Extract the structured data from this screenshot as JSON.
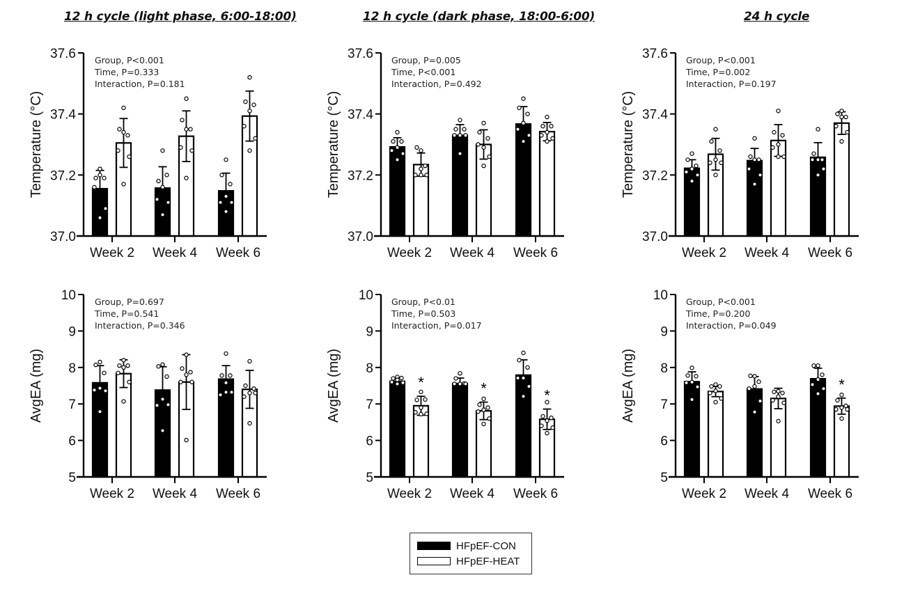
{
  "panel_titles": [
    "12 h cycle (light phase, 6:00-18:00)",
    "12 h cycle (dark phase, 18:00-6:00)",
    "24 h cycle"
  ],
  "legend": {
    "items": [
      {
        "label": "HFpEF-CON",
        "fill": "#000000"
      },
      {
        "label": "HFpEF-HEAT",
        "fill": "#ffffff"
      }
    ]
  },
  "chart_data": [
    {
      "type": "bar",
      "title": "12 h cycle (light phase, 6:00-18:00)",
      "ylabel": "Temperature  (°C)",
      "xlabel": "",
      "categories": [
        "Week 2",
        "Week 4",
        "Week 6"
      ],
      "ylim": [
        37.0,
        37.6
      ],
      "yticks": [
        37.0,
        37.2,
        37.4,
        37.6
      ],
      "ytick_labels": [
        "37.0",
        "37.2",
        "37.4",
        "37.6"
      ],
      "stats": [
        "Group, P<0.001",
        "Time, P=0.333",
        "Interaction, P=0.181"
      ],
      "series": [
        {
          "name": "HFpEF-CON",
          "values": [
            37.155,
            37.157,
            37.148
          ],
          "sd": [
            0.06,
            0.07,
            0.058
          ],
          "points": [
            [
              37.22,
              37.19,
              37.19,
              37.2,
              37.16,
              37.09,
              37.06
            ],
            [
              37.28,
              37.18,
              37.2,
              37.16,
              37.12,
              37.11,
              37.07
            ],
            [
              37.25,
              37.2,
              37.17,
              37.13,
              37.11,
              37.11,
              37.08
            ]
          ]
        },
        {
          "name": "HFpEF-HEAT",
          "values": [
            37.305,
            37.327,
            37.393
          ],
          "sd": [
            0.08,
            0.083,
            0.082
          ],
          "points": [
            [
              37.42,
              37.35,
              37.33,
              37.34,
              37.28,
              37.26,
              37.17
            ],
            [
              37.45,
              37.38,
              37.35,
              37.35,
              37.29,
              37.28,
              37.19
            ],
            [
              37.52,
              37.44,
              37.43,
              37.41,
              37.36,
              37.32,
              37.28
            ]
          ]
        }
      ],
      "significance": [
        "",
        "",
        ""
      ]
    },
    {
      "type": "bar",
      "title": "12 h cycle (dark phase, 18:00-6:00)",
      "ylabel": "Temperature  (°C)",
      "xlabel": "",
      "categories": [
        "Week 2",
        "Week 4",
        "Week 6"
      ],
      "ylim": [
        37.0,
        37.6
      ],
      "yticks": [
        37.0,
        37.2,
        37.4,
        37.6
      ],
      "ytick_labels": [
        "37.0",
        "37.2",
        "37.4",
        "37.6"
      ],
      "stats": [
        "Group, P=0.005",
        "Time, P<0.001",
        "Interaction, P=0.492"
      ],
      "series": [
        {
          "name": "HFpEF-CON",
          "values": [
            37.292,
            37.33,
            37.367
          ],
          "sd": [
            0.03,
            0.035,
            0.057
          ],
          "points": [
            [
              37.34,
              37.31,
              37.31,
              37.29,
              37.28,
              37.27,
              37.25
            ],
            [
              37.38,
              37.35,
              37.35,
              37.33,
              37.33,
              37.33,
              37.27
            ],
            [
              37.45,
              37.42,
              37.4,
              37.37,
              37.35,
              37.33,
              37.31
            ]
          ]
        },
        {
          "name": "HFpEF-HEAT",
          "values": [
            37.234,
            37.3,
            37.342
          ],
          "sd": [
            0.038,
            0.048,
            0.03
          ],
          "points": [
            [
              37.28,
              37.29,
              37.23,
              37.22,
              37.2,
              37.2,
              37.2
            ],
            [
              37.37,
              37.34,
              37.32,
              37.29,
              37.3,
              37.26,
              37.23
            ],
            [
              37.39,
              37.36,
              37.36,
              37.34,
              37.33,
              37.32,
              37.31
            ]
          ]
        }
      ],
      "significance": [
        "",
        "",
        ""
      ]
    },
    {
      "type": "bar",
      "title": "24 h cycle",
      "ylabel": "Temperature  (°C)",
      "xlabel": "",
      "categories": [
        "Week 2",
        "Week 4",
        "Week 6"
      ],
      "ylim": [
        37.0,
        37.6
      ],
      "yticks": [
        37.0,
        37.2,
        37.4,
        37.6
      ],
      "ytick_labels": [
        "37.0",
        "37.2",
        "37.4",
        "37.6"
      ],
      "stats": [
        "Group, P<0.001",
        "Time, P=0.002",
        "Interaction, P=0.197"
      ],
      "series": [
        {
          "name": "HFpEF-CON",
          "values": [
            37.222,
            37.247,
            37.258
          ],
          "sd": [
            0.028,
            0.04,
            0.048
          ],
          "points": [
            [
              37.27,
              37.25,
              37.23,
              37.22,
              37.21,
              37.2,
              37.18
            ],
            [
              37.32,
              37.26,
              37.25,
              37.25,
              37.22,
              37.2,
              37.17
            ],
            [
              37.35,
              37.27,
              37.25,
              37.25,
              37.25,
              37.22,
              37.2
            ]
          ]
        },
        {
          "name": "HFpEF-HEAT",
          "values": [
            37.268,
            37.313,
            37.37
          ],
          "sd": [
            0.052,
            0.052,
            0.037
          ],
          "points": [
            [
              37.35,
              37.31,
              37.28,
              37.25,
              37.24,
              37.24,
              37.2
            ],
            [
              37.41,
              37.34,
              37.33,
              37.3,
              37.29,
              37.26,
              37.26
            ],
            [
              37.41,
              37.4,
              37.39,
              37.39,
              37.36,
              37.34,
              37.31
            ]
          ]
        }
      ],
      "significance": [
        "",
        "",
        ""
      ]
    },
    {
      "type": "bar",
      "title": "",
      "ylabel": "AvgEA (mg)",
      "xlabel": "",
      "categories": [
        "Week 2",
        "Week 4",
        "Week 6"
      ],
      "ylim": [
        5,
        10
      ],
      "yticks": [
        5,
        6,
        7,
        8,
        9,
        10
      ],
      "ytick_labels": [
        "5",
        "6",
        "7",
        "8",
        "9",
        "10"
      ],
      "stats": [
        "Group, P=0.697",
        "Time, P=0.541",
        "Interaction, P=0.346"
      ],
      "series": [
        {
          "name": "HFpEF-CON",
          "values": [
            7.58,
            7.38,
            7.68
          ],
          "sd": [
            0.47,
            0.64,
            0.37
          ],
          "points": [
            [
              8.15,
              8.07,
              7.85,
              7.43,
              7.38,
              7.36,
              6.79
            ],
            [
              8.08,
              8.03,
              7.75,
              7.13,
              6.96,
              6.98,
              6.27
            ],
            [
              8.38,
              7.78,
              7.78,
              7.58,
              7.25,
              7.32,
              7.32
            ]
          ]
        },
        {
          "name": "HFpEF-HEAT",
          "values": [
            7.83,
            7.6,
            7.4
          ],
          "sd": [
            0.38,
            0.75,
            0.52
          ],
          "points": [
            [
              8.2,
              8.05,
              8.05,
              8.0,
              7.85,
              7.6,
              7.07
            ],
            [
              8.35,
              7.97,
              7.87,
              7.8,
              7.6,
              7.6,
              6.01
            ],
            [
              8.17,
              7.5,
              7.42,
              7.3,
              7.2,
              7.3,
              6.47
            ]
          ]
        }
      ],
      "significance": [
        "",
        "",
        ""
      ]
    },
    {
      "type": "bar",
      "title": "",
      "ylabel": "AvgEA (mg)",
      "xlabel": "",
      "categories": [
        "Week 2",
        "Week 4",
        "Week 6"
      ],
      "ylim": [
        5,
        10
      ],
      "yticks": [
        5,
        6,
        7,
        8,
        9,
        10
      ],
      "ytick_labels": [
        "5",
        "6",
        "7",
        "8",
        "9",
        "10"
      ],
      "stats": [
        "Group, P<0.01",
        "Time, P=0.503",
        "Interaction, P=0.017"
      ],
      "series": [
        {
          "name": "HFpEF-CON",
          "values": [
            7.62,
            7.56,
            7.79
          ],
          "sd": [
            0.08,
            0.15,
            0.42
          ],
          "points": [
            [
              7.74,
              7.7,
              7.71,
              7.66,
              7.6,
              7.58,
              7.55
            ],
            [
              7.84,
              7.7,
              7.56,
              7.55,
              7.55,
              7.55,
              7.55
            ],
            [
              8.4,
              8.2,
              8.0,
              7.71,
              7.71,
              7.48,
              7.21
            ]
          ]
        },
        {
          "name": "HFpEF-HEAT",
          "values": [
            6.95,
            6.81,
            6.58
          ],
          "sd": [
            0.26,
            0.24,
            0.28
          ],
          "points": [
            [
              7.33,
              7.11,
              7.12,
              6.9,
              6.77,
              6.73,
              6.72
            ],
            [
              7.14,
              6.98,
              6.9,
              6.84,
              6.79,
              6.6,
              6.45
            ],
            [
              7.05,
              6.66,
              6.62,
              6.54,
              6.4,
              6.35,
              6.2
            ]
          ]
        }
      ],
      "significance": [
        "*",
        "*",
        "*"
      ]
    },
    {
      "type": "bar",
      "title": "",
      "ylabel": "AvgEA (mg)",
      "xlabel": "",
      "categories": [
        "Week 2",
        "Week 4",
        "Week 6"
      ],
      "ylim": [
        5,
        10
      ],
      "yticks": [
        5,
        6,
        7,
        8,
        9,
        10
      ],
      "ytick_labels": [
        "5",
        "6",
        "7",
        "8",
        "9",
        "10"
      ],
      "stats": [
        "Group, P<0.001",
        "Time, P=0.200",
        "Interaction, P=0.049"
      ],
      "series": [
        {
          "name": "HFpEF-CON",
          "values": [
            7.61,
            7.41,
            7.69
          ],
          "sd": [
            0.27,
            0.34,
            0.29
          ],
          "points": [
            [
              7.99,
              7.78,
              7.76,
              7.6,
              7.58,
              7.47,
              7.12
            ],
            [
              7.76,
              7.77,
              7.61,
              7.48,
              7.42,
              7.08,
              6.78
            ],
            [
              8.05,
              8.05,
              7.8,
              7.67,
              7.53,
              7.42,
              7.28
            ]
          ]
        },
        {
          "name": "HFpEF-HEAT",
          "values": [
            7.34,
            7.15,
            6.94
          ],
          "sd": [
            0.14,
            0.28,
            0.22
          ],
          "points": [
            [
              7.53,
              7.48,
              7.48,
              7.36,
              7.3,
              7.15,
              7.05
            ],
            [
              7.35,
              7.33,
              7.3,
              7.2,
              7.1,
              7.03,
              6.53
            ],
            [
              7.25,
              7.1,
              6.95,
              6.9,
              6.85,
              6.85,
              6.6
            ]
          ]
        }
      ],
      "significance": [
        "",
        "",
        "*"
      ]
    }
  ]
}
